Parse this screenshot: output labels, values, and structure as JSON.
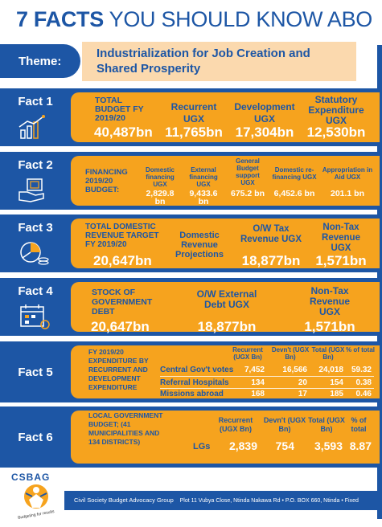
{
  "headline": {
    "bold": "7 FACTS",
    "rest": "YOU SHOULD KNOW ABO"
  },
  "theme": {
    "label": "Theme:",
    "text": "Industrialization for Job Creation and Shared Prosperity"
  },
  "colors": {
    "blue": "#1d56a5",
    "orange": "#f6a31e",
    "light_orange": "#fbd9ae",
    "white": "#ffffff"
  },
  "facts": [
    {
      "tag": "Fact 1",
      "icon": "budget-chart-icon",
      "total_label": "TOTAL BUDGET FY 2019/20",
      "total_value": "40,487bn",
      "items": [
        {
          "label": "Recurrent UGX",
          "value": "11,765bn"
        },
        {
          "label": "Development UGX",
          "value": "17,304bn"
        },
        {
          "label": "Statutory Expenditure UGX",
          "value": "12,530bn"
        }
      ]
    },
    {
      "tag": "Fact 2",
      "icon": "hand-money-icon",
      "lead_label": "FINANCING 2019/20 BUDGET:",
      "items": [
        {
          "label": "Domestic financing UGX",
          "value": "2,829.8 bn"
        },
        {
          "label": "External financing UGX",
          "value": "9,433.6 bn"
        },
        {
          "label": "General Budget support UGX",
          "value": "675.2 bn"
        },
        {
          "label": "Domestic re-financing UGX",
          "value": "6,452.6 bn"
        },
        {
          "label": "Appropriation in Aid UGX",
          "value": "201.1 bn"
        }
      ]
    },
    {
      "tag": "Fact 3",
      "icon": "pie-coins-icon",
      "total_label": "TOTAL DOMESTIC REVENUE TARGET FY 2019/20",
      "total_value": "20,647bn",
      "middle_label": "Domestic Revenue Projections",
      "items": [
        {
          "label": "O/W Tax Revenue UGX",
          "value": "18,877bn"
        },
        {
          "label": "Non-Tax Revenue UGX",
          "value": "1,571bn"
        }
      ]
    },
    {
      "tag": "Fact 4",
      "icon": "calendar-money-icon",
      "total_label": "STOCK OF GOVERNMENT DEBT",
      "total_value": "20,647bn",
      "items": [
        {
          "label": "O/W External Debt UGX",
          "value": "18,877bn"
        },
        {
          "label": "Non-Tax Revenue UGX",
          "value": "1,571bn"
        }
      ]
    },
    {
      "tag": "Fact 5",
      "lead_label": "FY 2019/20 EXPENDITURE BY RECURRENT AND DEVELOPMENT EXPENDITURE",
      "columns": [
        "Recurrent (UGX Bn)",
        "Devn't (UGX Bn)",
        "Total (UGX Bn)",
        "% of total"
      ],
      "rows": [
        {
          "name": "Central Gov't votes",
          "cells": [
            "7,452",
            "16,566",
            "24,018",
            "59.32"
          ]
        },
        {
          "name": "Referral Hospitals",
          "cells": [
            "134",
            "20",
            "154",
            "0.38"
          ]
        },
        {
          "name": "Missions abroad",
          "cells": [
            "168",
            "17",
            "185",
            "0.46"
          ]
        }
      ]
    },
    {
      "tag": "Fact 6",
      "lead_label": "LOCAL GOVERNMENT BUDGET; (41 MUNICIPALITIES AND 134 DISTRICTS)",
      "columns": [
        "Recurrent (UGX Bn)",
        "Devn't (UGX Bn)",
        "Total (UGX Bn)",
        "% of total"
      ],
      "rows": [
        {
          "name": "LGs",
          "cells": [
            "2,839",
            "754",
            "3,593",
            "8.87"
          ]
        }
      ]
    }
  ],
  "footer": {
    "logo": "CSBAG",
    "tagline": "Budgeting for results",
    "org": "Civil Society Budget Advocacy Group",
    "address": "Plot 11 Vubya Close, Ntinda Nakawa Rd • P.O. BOX 660, Ntinda • Fixed"
  }
}
